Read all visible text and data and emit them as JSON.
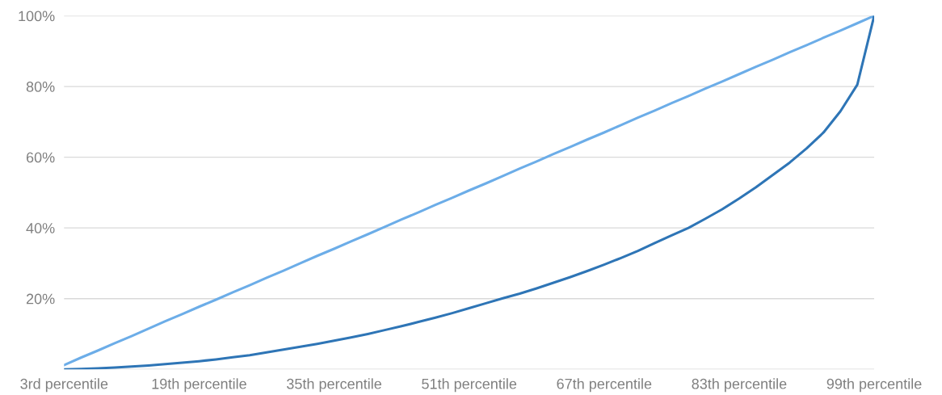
{
  "chart_data": {
    "type": "line",
    "categories": [
      "3rd percentile",
      null,
      null,
      null,
      null,
      null,
      null,
      null,
      "19th percentile",
      null,
      null,
      null,
      null,
      null,
      null,
      null,
      "35th percentile",
      null,
      null,
      null,
      null,
      null,
      null,
      null,
      "51th percentile",
      null,
      null,
      null,
      null,
      null,
      null,
      null,
      "67th percentile",
      null,
      null,
      null,
      null,
      null,
      null,
      null,
      "83th percentile",
      null,
      null,
      null,
      null,
      null,
      null,
      null,
      "99th percentile"
    ],
    "series": [
      {
        "color": "#6cade8",
        "values": [
          1.2,
          3.3,
          5.3,
          7.4,
          9.4,
          11.5,
          13.6,
          15.6,
          17.7,
          19.7,
          21.8,
          23.8,
          25.9,
          27.9,
          30.0,
          32.1,
          34.1,
          36.2,
          38.2,
          40.3,
          42.4,
          44.4,
          46.5,
          48.5,
          50.6,
          52.6,
          54.7,
          56.8,
          58.8,
          60.9,
          62.9,
          65.0,
          67.0,
          69.1,
          71.2,
          73.2,
          75.3,
          77.3,
          79.4,
          81.4,
          83.5,
          85.6,
          87.6,
          89.7,
          91.7,
          93.8,
          95.8,
          97.9,
          100
        ]
      },
      {
        "color": "#2e75b6",
        "values": [
          0,
          0.1,
          0.3,
          0.5,
          0.8,
          1.1,
          1.5,
          1.9,
          2.3,
          2.8,
          3.4,
          4.0,
          4.8,
          5.6,
          6.4,
          7.2,
          8.1,
          9.0,
          10.0,
          11.1,
          12.2,
          13.4,
          14.6,
          15.9,
          17.3,
          18.7,
          20.1,
          21.4,
          22.9,
          24.5,
          26.1,
          27.8,
          29.6,
          31.5,
          33.5,
          35.7,
          37.9,
          40.0,
          42.6,
          45.3,
          48.3,
          51.5,
          55.0,
          58.5,
          62.5,
          67.0,
          73.0,
          80.5,
          100
        ]
      }
    ],
    "ylim": [
      0,
      100
    ],
    "yticks": [
      {
        "value": 0,
        "label": null
      },
      {
        "value": 20,
        "label": "20%"
      },
      {
        "value": 40,
        "label": "40%"
      },
      {
        "value": 60,
        "label": "60%"
      },
      {
        "value": 80,
        "label": "80%"
      },
      {
        "value": 100,
        "label": "100%"
      }
    ],
    "grid": "y",
    "marker": "none",
    "line_style": "solid"
  }
}
